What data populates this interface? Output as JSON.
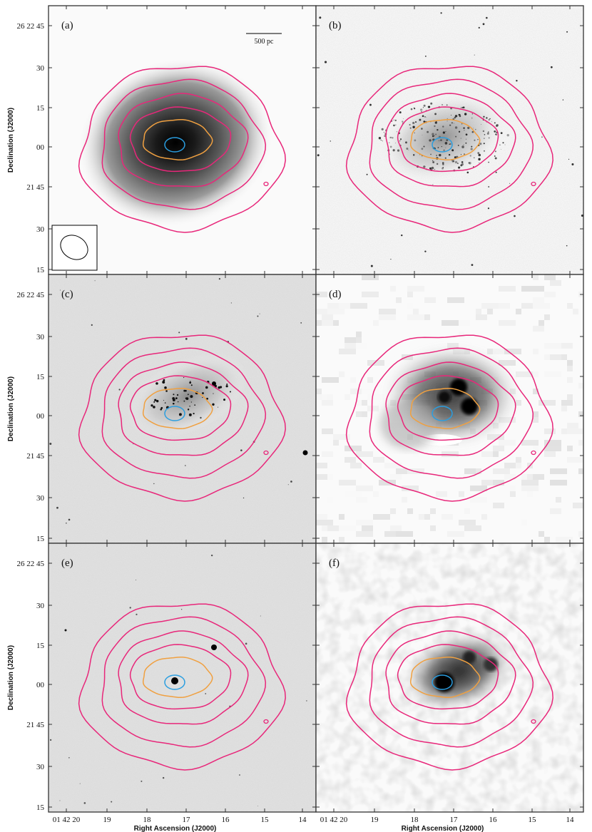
{
  "figure": {
    "panels": [
      {
        "label": "(a)",
        "style": "hi-smooth",
        "row": 0,
        "col": 0,
        "beam": true,
        "scalebar": true
      },
      {
        "label": "(b)",
        "style": "speckle",
        "row": 0,
        "col": 1,
        "beam": false,
        "scalebar": false
      },
      {
        "label": "(c)",
        "style": "optical",
        "row": 1,
        "col": 0,
        "beam": false,
        "scalebar": false
      },
      {
        "label": "(d)",
        "style": "blocky",
        "row": 1,
        "col": 1,
        "beam": false,
        "scalebar": false
      },
      {
        "label": "(e)",
        "style": "optical-faint",
        "row": 2,
        "col": 0,
        "beam": false,
        "scalebar": false
      },
      {
        "label": "(f)",
        "style": "blobby",
        "row": 2,
        "col": 1,
        "beam": false,
        "scalebar": false
      }
    ],
    "dec_ticks": [
      "26 22 45",
      "30",
      "15",
      "00",
      "21 45",
      "30",
      "15"
    ],
    "ra_ticks": [
      "01 42 20",
      "19",
      "18",
      "17",
      "16",
      "15",
      "14"
    ],
    "dec_axis_label": "Declination (J2000)",
    "ra_axis_label": "Right Ascension (J2000)",
    "scalebar_label": "500 pc",
    "colors": {
      "outer_contour": "#e8277a",
      "orange_contour": "#f0a040",
      "blue_contour": "#2a9ee0",
      "frame": "#333333"
    }
  }
}
